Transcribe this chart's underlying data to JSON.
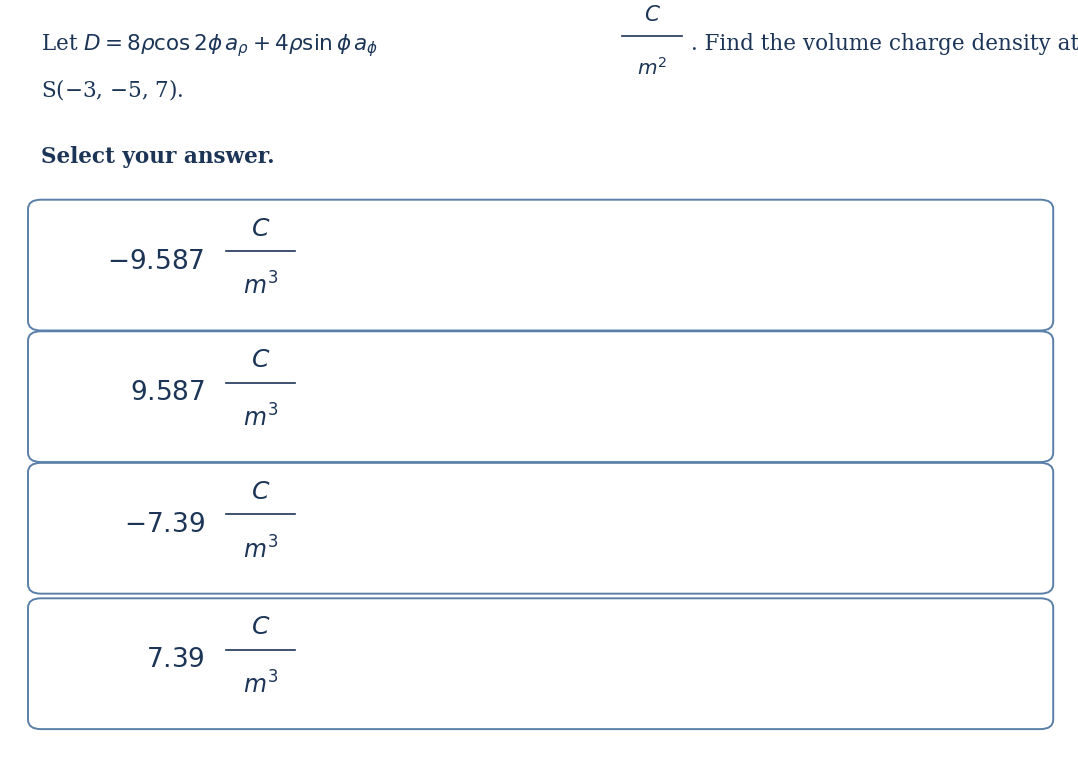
{
  "background_color": "#ffffff",
  "text_color": "#1c3557",
  "box_edge_color": "#5a7fa8",
  "fig_width": 10.78,
  "fig_height": 7.74,
  "answers": [
    {
      "value": "-9.587"
    },
    {
      "value": "9.587"
    },
    {
      "value": "-7.39"
    },
    {
      "value": "7.39"
    }
  ]
}
